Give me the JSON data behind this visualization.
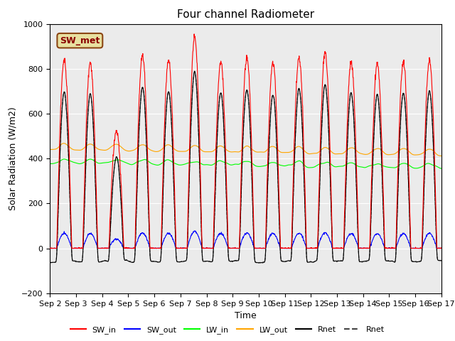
{
  "title": "Four channel Radiometer",
  "xlabel": "Time",
  "ylabel": "Solar Radiation (W/m2)",
  "ylim": [
    -200,
    1000
  ],
  "background_color": "#ebebeb",
  "figure_color": "#ffffff",
  "grid_color": "#ffffff",
  "annotation_text": "SW_met",
  "annotation_bg": "#e8e0a0",
  "annotation_border": "#8B4513",
  "legend_entries": [
    "SW_in",
    "SW_out",
    "LW_in",
    "LW_out",
    "Rnet",
    "Rnet"
  ],
  "line_colors": [
    "red",
    "blue",
    "lime",
    "orange",
    "black",
    "#444444"
  ],
  "line_styles": [
    "-",
    "-",
    "-",
    "-",
    "-",
    "--"
  ],
  "n_days": 15,
  "title_fontsize": 11,
  "label_fontsize": 9,
  "tick_fontsize": 8
}
